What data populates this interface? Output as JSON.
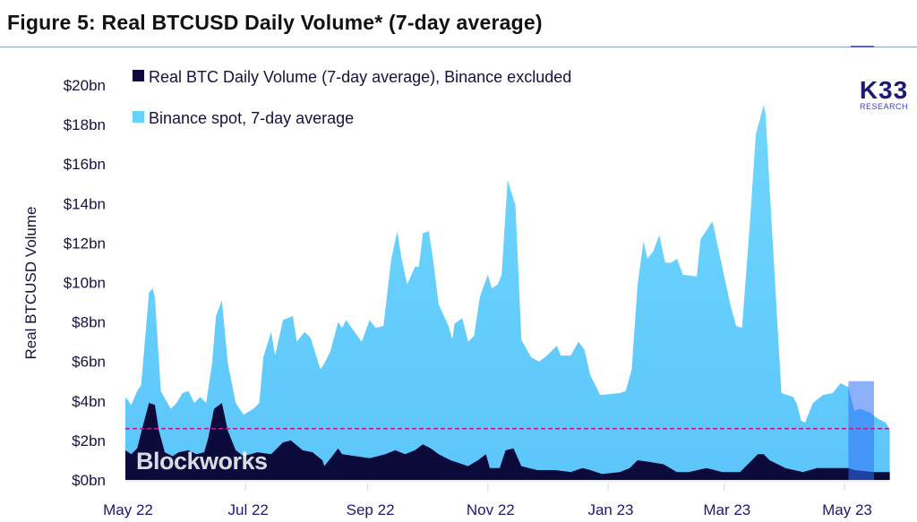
{
  "chart_data": {
    "type": "area",
    "title": "Figure 5: Real BTCUSD Daily Volume* (7-day average)",
    "ylabel": "Real BTCUSD Volume",
    "xlabel": "",
    "x_unit": "days since May 1, 2022",
    "ylim": [
      0,
      20
    ],
    "xlim": [
      0,
      388
    ],
    "yticks": [
      {
        "value": 0,
        "label": "$0bn"
      },
      {
        "value": 2,
        "label": "$2bn"
      },
      {
        "value": 4,
        "label": "$4bn"
      },
      {
        "value": 6,
        "label": "$6bn"
      },
      {
        "value": 8,
        "label": "$8bn"
      },
      {
        "value": 10,
        "label": "$10bn"
      },
      {
        "value": 12,
        "label": "$12bn"
      },
      {
        "value": 14,
        "label": "$14bn"
      },
      {
        "value": 16,
        "label": "$16bn"
      },
      {
        "value": 18,
        "label": "$18bn"
      },
      {
        "value": 20,
        "label": "$20bn"
      }
    ],
    "xticks": [
      {
        "value": 0,
        "label": "May 22"
      },
      {
        "value": 61,
        "label": "Jul 22"
      },
      {
        "value": 123,
        "label": "Sep 22"
      },
      {
        "value": 184,
        "label": "Nov 22"
      },
      {
        "value": 245,
        "label": "Jan 23"
      },
      {
        "value": 304,
        "label": "Mar 23"
      },
      {
        "value": 365,
        "label": "May 23"
      }
    ],
    "grid": false,
    "legend_position": "top-left",
    "series": [
      {
        "name": "Binance spot, 7-day average",
        "color": "#66d1fb",
        "x": [
          0,
          3,
          6,
          8,
          12,
          14,
          15,
          18,
          23,
          26,
          29,
          32,
          35,
          38,
          41,
          44,
          46,
          49,
          52,
          56,
          60,
          65,
          68,
          70,
          74,
          76,
          80,
          85,
          87,
          91,
          94,
          99,
          101,
          104,
          108,
          110,
          112,
          117,
          120,
          124,
          127,
          131,
          135,
          138,
          140,
          143,
          147,
          149,
          151,
          154,
          156,
          159,
          164,
          166,
          167,
          171,
          174,
          177,
          180,
          184,
          186,
          189,
          191,
          194,
          198,
          201,
          206,
          210,
          214,
          219,
          221,
          226,
          230,
          233,
          236,
          241,
          251,
          254,
          257,
          260,
          263,
          265,
          268,
          271,
          274,
          277,
          280,
          283,
          290,
          292,
          298,
          301,
          307,
          310,
          313,
          317,
          320,
          324,
          325,
          327,
          333,
          339,
          341,
          343,
          345,
          349,
          354,
          359,
          363,
          367,
          370,
          373,
          378,
          382,
          386,
          388
        ],
        "values": [
          4.2,
          3.8,
          4.5,
          4.8,
          9.5,
          9.7,
          9.2,
          4.5,
          3.6,
          3.9,
          4.4,
          4.5,
          3.9,
          4.2,
          3.9,
          5.9,
          8.3,
          9.1,
          5.9,
          3.9,
          3.3,
          3.6,
          3.9,
          6.2,
          7.5,
          6.3,
          8.1,
          8.3,
          7.0,
          7.5,
          7.2,
          5.6,
          5.9,
          6.5,
          8.0,
          7.7,
          8.1,
          7.4,
          7.0,
          8.1,
          7.7,
          7.8,
          11.2,
          12.6,
          11.3,
          9.9,
          10.8,
          10.8,
          12.5,
          12.6,
          11.3,
          8.9,
          7.8,
          7.1,
          7.9,
          8.2,
          7.0,
          7.3,
          9.3,
          10.4,
          9.7,
          9.9,
          10.4,
          15.2,
          13.9,
          7.1,
          6.2,
          6.0,
          6.3,
          6.8,
          6.3,
          6.3,
          7.0,
          6.6,
          5.3,
          4.3,
          4.4,
          4.5,
          5.6,
          9.9,
          12.1,
          11.2,
          11.6,
          12.4,
          11.0,
          11.0,
          11.2,
          10.4,
          10.3,
          12.2,
          13.1,
          11.7,
          8.9,
          7.8,
          7.7,
          13.0,
          17.5,
          19.0,
          18.5,
          14.8,
          4.4,
          4.2,
          3.8,
          3.0,
          2.9,
          3.9,
          4.3,
          4.4,
          4.9,
          4.7,
          3.5,
          3.6,
          3.4,
          3.1,
          2.9,
          2.5
        ]
      },
      {
        "name": "Real BTC Daily Volume (7-day average), Binance excluded",
        "color": "#0c0a3a",
        "x": [
          0,
          3,
          6,
          8,
          12,
          15,
          17,
          20,
          24,
          27,
          32,
          36,
          40,
          42,
          45,
          49,
          52,
          56,
          60,
          67,
          74,
          80,
          84,
          90,
          95,
          100,
          101,
          105,
          108,
          110,
          117,
          124,
          132,
          137,
          142,
          147,
          151,
          155,
          159,
          165,
          174,
          179,
          183,
          185,
          190,
          193,
          197,
          201,
          209,
          218,
          226,
          232,
          236,
          242,
          251,
          256,
          260,
          267,
          273,
          280,
          286,
          295,
          303,
          312,
          317,
          321,
          324,
          327,
          335,
          344,
          351,
          358,
          367,
          370,
          380,
          388
        ],
        "values": [
          1.5,
          1.3,
          1.6,
          2.4,
          3.9,
          3.8,
          2.5,
          1.4,
          1.2,
          1.4,
          1.5,
          1.3,
          1.4,
          2.1,
          3.6,
          3.9,
          2.5,
          1.5,
          1.2,
          1.4,
          1.3,
          1.9,
          2.0,
          1.5,
          1.4,
          1.0,
          0.7,
          1.2,
          1.6,
          1.3,
          1.2,
          1.1,
          1.3,
          1.5,
          1.3,
          1.5,
          1.8,
          1.6,
          1.3,
          1.0,
          0.7,
          1.0,
          1.3,
          0.6,
          0.6,
          1.5,
          1.6,
          0.7,
          0.5,
          0.5,
          0.4,
          0.6,
          0.5,
          0.3,
          0.4,
          0.6,
          1.0,
          0.9,
          0.8,
          0.4,
          0.4,
          0.6,
          0.4,
          0.4,
          0.9,
          1.3,
          1.3,
          1.0,
          0.6,
          0.4,
          0.6,
          0.6,
          0.6,
          0.5,
          0.4,
          0.4
        ]
      }
    ],
    "reference_line": {
      "value": 2.6,
      "color": "#b0208f",
      "style": "dashed"
    },
    "highlight_range": {
      "from": 367,
      "to": 380,
      "color": "#2f6ff5"
    }
  },
  "legend": {
    "dark_label": "Real BTC Daily Volume (7-day average), Binance excluded",
    "light_label": "Binance spot, 7-day average"
  },
  "logo": {
    "main": "K33",
    "sub": "RESEARCH"
  },
  "watermark": "Blockworks"
}
